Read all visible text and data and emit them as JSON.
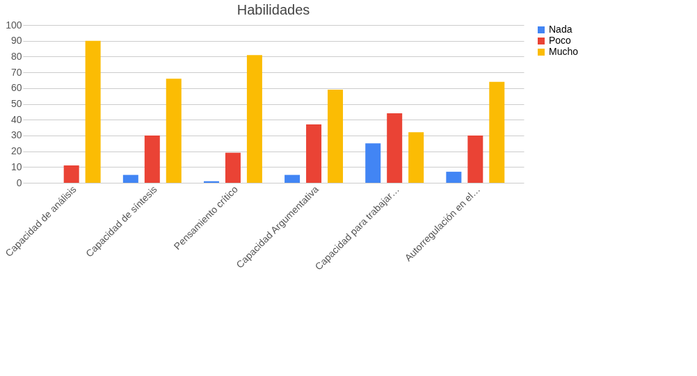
{
  "chart_data": {
    "type": "bar",
    "title": "Habilidades",
    "categories": [
      "Capacidad de análisis",
      "Capacidad de síntesis",
      "Pensamiento crítico",
      "Capacidad Argumentativa",
      "Capacidad para trabajar…",
      "Autorregulación en el…"
    ],
    "series": [
      {
        "name": "Nada",
        "color": "#4285f4",
        "values": [
          0,
          5,
          1,
          5,
          25,
          7
        ]
      },
      {
        "name": "Poco",
        "color": "#ea4335",
        "values": [
          11,
          30,
          19,
          37,
          44,
          30
        ]
      },
      {
        "name": "Mucho",
        "color": "#fbbc04",
        "values": [
          90,
          66,
          81,
          59,
          32,
          64
        ]
      }
    ],
    "ylim": [
      0,
      100
    ],
    "yticks": [
      0,
      10,
      20,
      30,
      40,
      50,
      60,
      70,
      80,
      90,
      100
    ],
    "grid": "y",
    "legend": "right"
  }
}
